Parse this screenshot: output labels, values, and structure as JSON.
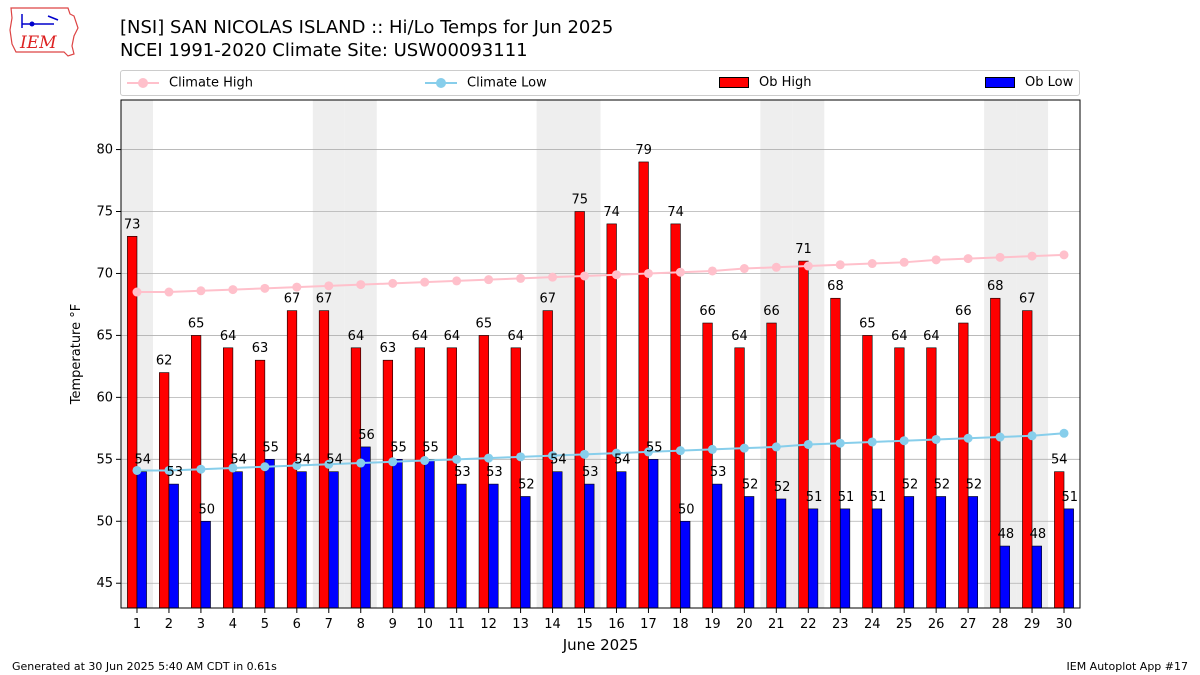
{
  "header": {
    "title_line1": "[NSI] SAN NICOLAS ISLAND :: Hi/Lo Temps for Jun 2025",
    "title_line2": "NCEI 1991-2020 Climate Site: USW00093111"
  },
  "logo": {
    "text": "IEM"
  },
  "legend": {
    "climate_high": "Climate High",
    "climate_low": "Climate Low",
    "ob_high": "Ob High",
    "ob_low": "Ob Low"
  },
  "colors": {
    "ob_high": "#ff0000",
    "ob_low": "#0000ff",
    "climate_high": "#ffc0cb",
    "climate_low": "#87ceeb",
    "weekend_band": "#eeeeee",
    "grid": "#b0b0b0"
  },
  "footer": {
    "left": "Generated at 30 Jun 2025 5:40 AM CDT in 0.61s",
    "right": "IEM Autoplot App #17"
  },
  "chart_data": {
    "type": "bar",
    "xlabel": "June 2025",
    "ylabel": "Temperature °F",
    "ylim": [
      43,
      84
    ],
    "yticks": [
      45,
      50,
      55,
      60,
      65,
      70,
      75,
      80
    ],
    "grid": "horizontal",
    "legend_position": "top",
    "categories": [
      1,
      2,
      3,
      4,
      5,
      6,
      7,
      8,
      9,
      10,
      11,
      12,
      13,
      14,
      15,
      16,
      17,
      18,
      19,
      20,
      21,
      22,
      23,
      24,
      25,
      26,
      27,
      28,
      29,
      30
    ],
    "shaded_weekend_days": [
      1,
      7,
      8,
      14,
      15,
      21,
      22,
      28,
      29
    ],
    "series": [
      {
        "name": "Ob High",
        "type": "bar",
        "values": [
          73,
          62,
          65,
          64,
          63,
          67,
          67,
          64,
          63,
          64,
          64,
          65,
          64,
          67,
          75,
          74,
          79,
          74,
          66,
          64,
          66,
          71,
          68,
          65,
          64,
          64,
          66,
          68,
          67,
          54
        ],
        "labels": [
          "73",
          "62",
          "65",
          "64",
          "63",
          "67",
          "67",
          "64",
          "63",
          "64",
          "64",
          "65",
          "64",
          "67",
          "75",
          "74",
          "79",
          "74",
          "66",
          "64",
          "66",
          "71",
          "68",
          "65",
          "64",
          "64",
          "66",
          "68",
          "67",
          "54"
        ]
      },
      {
        "name": "Ob Low",
        "type": "bar",
        "values": [
          54,
          53,
          50,
          54,
          55,
          54,
          54,
          56,
          55,
          55,
          53,
          53,
          52,
          54,
          53,
          54,
          55,
          50,
          53,
          52,
          51.8,
          51,
          51,
          51,
          52,
          52,
          52,
          48,
          48,
          51
        ],
        "labels": [
          "54",
          "53",
          "50",
          "54",
          "55",
          "54",
          "54",
          "56",
          "55",
          "55",
          "53",
          "53",
          "52",
          "54",
          "53",
          "54",
          "55",
          "50",
          "53",
          "52",
          "52",
          "51",
          "51",
          "51",
          "52",
          "52",
          "52",
          "48",
          "48",
          "51"
        ]
      },
      {
        "name": "Climate High",
        "type": "line",
        "values": [
          68.5,
          68.5,
          68.6,
          68.7,
          68.8,
          68.9,
          69.0,
          69.1,
          69.2,
          69.3,
          69.4,
          69.5,
          69.6,
          69.7,
          69.8,
          69.9,
          70.0,
          70.1,
          70.2,
          70.4,
          70.5,
          70.6,
          70.7,
          70.8,
          70.9,
          71.1,
          71.2,
          71.3,
          71.4,
          71.5
        ]
      },
      {
        "name": "Climate Low",
        "type": "line",
        "values": [
          54.1,
          54.1,
          54.2,
          54.3,
          54.4,
          54.5,
          54.6,
          54.7,
          54.8,
          54.9,
          55.0,
          55.1,
          55.2,
          55.3,
          55.4,
          55.5,
          55.6,
          55.7,
          55.8,
          55.9,
          56.0,
          56.2,
          56.3,
          56.4,
          56.5,
          56.6,
          56.7,
          56.8,
          56.9,
          57.1
        ]
      }
    ]
  }
}
